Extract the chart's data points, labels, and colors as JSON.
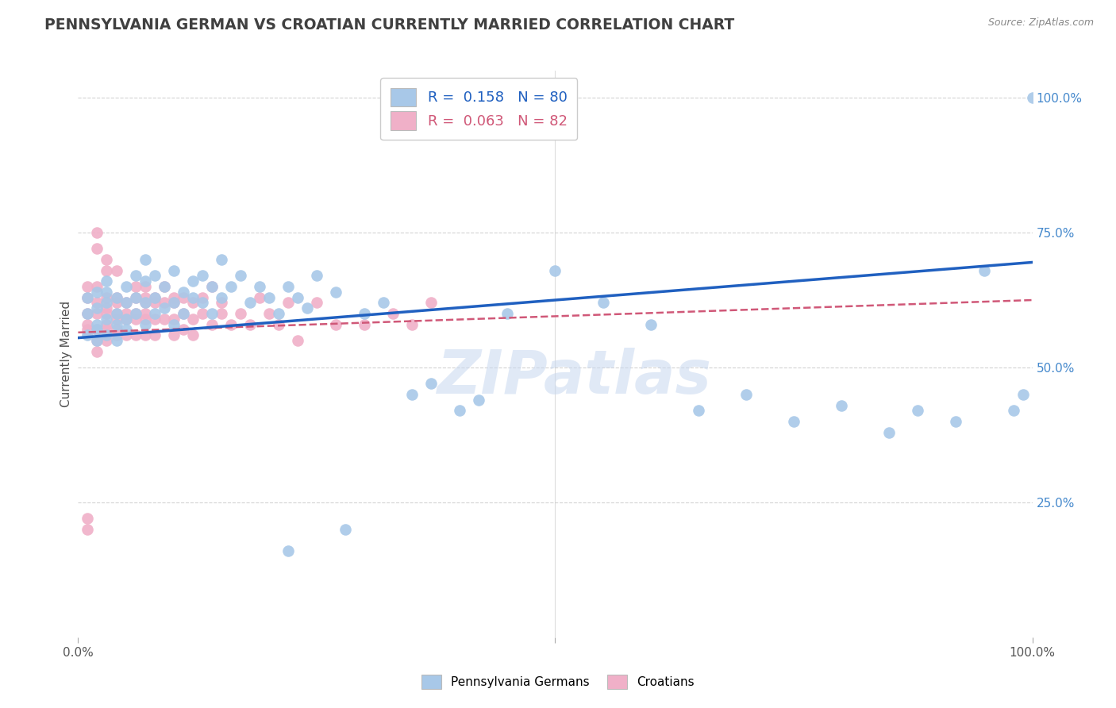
{
  "title": "PENNSYLVANIA GERMAN VS CROATIAN CURRENTLY MARRIED CORRELATION CHART",
  "source": "Source: ZipAtlas.com",
  "ylabel": "Currently Married",
  "xlim": [
    0.0,
    1.0
  ],
  "ylim": [
    0.0,
    1.05
  ],
  "blue_scatter_color": "#a8c8e8",
  "pink_scatter_color": "#f0b0c8",
  "blue_line_color": "#2060c0",
  "pink_line_color": "#d05878",
  "grid_color": "#c8c8c8",
  "watermark": "ZIPatlas",
  "watermark_color": "#c8d8f0",
  "title_color": "#404040",
  "title_fontsize": 13.5,
  "axis_label_color": "#505050",
  "tick_color_right": "#4488cc",
  "R_blue": 0.158,
  "N_blue": 80,
  "R_pink": 0.063,
  "N_pink": 82,
  "blue_line_start_y": 0.555,
  "blue_line_end_y": 0.695,
  "pink_line_start_y": 0.565,
  "pink_line_end_y": 0.625,
  "blue_x": [
    0.01,
    0.01,
    0.01,
    0.02,
    0.02,
    0.02,
    0.02,
    0.02,
    0.03,
    0.03,
    0.03,
    0.03,
    0.03,
    0.04,
    0.04,
    0.04,
    0.04,
    0.05,
    0.05,
    0.05,
    0.05,
    0.06,
    0.06,
    0.06,
    0.07,
    0.07,
    0.07,
    0.07,
    0.08,
    0.08,
    0.08,
    0.09,
    0.09,
    0.1,
    0.1,
    0.1,
    0.11,
    0.11,
    0.12,
    0.12,
    0.13,
    0.13,
    0.14,
    0.14,
    0.15,
    0.15,
    0.16,
    0.17,
    0.18,
    0.19,
    0.2,
    0.21,
    0.22,
    0.23,
    0.24,
    0.25,
    0.27,
    0.3,
    0.32,
    0.35,
    0.37,
    0.4,
    0.42,
    0.45,
    0.5,
    0.55,
    0.6,
    0.65,
    0.7,
    0.75,
    0.8,
    0.85,
    0.88,
    0.92,
    0.95,
    0.98,
    0.99,
    1.0,
    0.28,
    0.22
  ],
  "blue_y": [
    0.6,
    0.56,
    0.63,
    0.58,
    0.61,
    0.55,
    0.64,
    0.57,
    0.62,
    0.59,
    0.56,
    0.64,
    0.66,
    0.58,
    0.6,
    0.55,
    0.63,
    0.62,
    0.59,
    0.65,
    0.57,
    0.63,
    0.6,
    0.67,
    0.62,
    0.66,
    0.58,
    0.7,
    0.63,
    0.6,
    0.67,
    0.61,
    0.65,
    0.68,
    0.62,
    0.58,
    0.64,
    0.6,
    0.66,
    0.63,
    0.62,
    0.67,
    0.65,
    0.6,
    0.63,
    0.7,
    0.65,
    0.67,
    0.62,
    0.65,
    0.63,
    0.6,
    0.65,
    0.63,
    0.61,
    0.67,
    0.64,
    0.6,
    0.62,
    0.45,
    0.47,
    0.42,
    0.44,
    0.6,
    0.68,
    0.62,
    0.58,
    0.42,
    0.45,
    0.4,
    0.43,
    0.38,
    0.42,
    0.4,
    0.68,
    0.42,
    0.45,
    1.0,
    0.2,
    0.16
  ],
  "pink_x": [
    0.01,
    0.01,
    0.01,
    0.01,
    0.01,
    0.02,
    0.02,
    0.02,
    0.02,
    0.02,
    0.02,
    0.03,
    0.03,
    0.03,
    0.03,
    0.03,
    0.03,
    0.04,
    0.04,
    0.04,
    0.04,
    0.04,
    0.04,
    0.05,
    0.05,
    0.05,
    0.05,
    0.06,
    0.06,
    0.06,
    0.06,
    0.06,
    0.07,
    0.07,
    0.07,
    0.07,
    0.07,
    0.07,
    0.08,
    0.08,
    0.08,
    0.08,
    0.09,
    0.09,
    0.09,
    0.1,
    0.1,
    0.1,
    0.1,
    0.11,
    0.11,
    0.11,
    0.12,
    0.12,
    0.12,
    0.13,
    0.13,
    0.14,
    0.14,
    0.15,
    0.15,
    0.16,
    0.17,
    0.18,
    0.19,
    0.2,
    0.21,
    0.22,
    0.23,
    0.25,
    0.27,
    0.3,
    0.33,
    0.35,
    0.37,
    0.02,
    0.02,
    0.03,
    0.03,
    0.04,
    0.01,
    0.01
  ],
  "pink_y": [
    0.63,
    0.6,
    0.57,
    0.65,
    0.58,
    0.62,
    0.57,
    0.6,
    0.55,
    0.65,
    0.53,
    0.61,
    0.57,
    0.63,
    0.6,
    0.55,
    0.58,
    0.62,
    0.59,
    0.56,
    0.63,
    0.6,
    0.57,
    0.62,
    0.59,
    0.56,
    0.6,
    0.63,
    0.59,
    0.56,
    0.6,
    0.65,
    0.62,
    0.59,
    0.63,
    0.56,
    0.6,
    0.65,
    0.62,
    0.59,
    0.63,
    0.56,
    0.62,
    0.59,
    0.65,
    0.62,
    0.59,
    0.56,
    0.63,
    0.6,
    0.63,
    0.57,
    0.62,
    0.59,
    0.56,
    0.63,
    0.6,
    0.65,
    0.58,
    0.62,
    0.6,
    0.58,
    0.6,
    0.58,
    0.63,
    0.6,
    0.58,
    0.62,
    0.55,
    0.62,
    0.58,
    0.58,
    0.6,
    0.58,
    0.62,
    0.75,
    0.72,
    0.7,
    0.68,
    0.68,
    0.22,
    0.2
  ]
}
